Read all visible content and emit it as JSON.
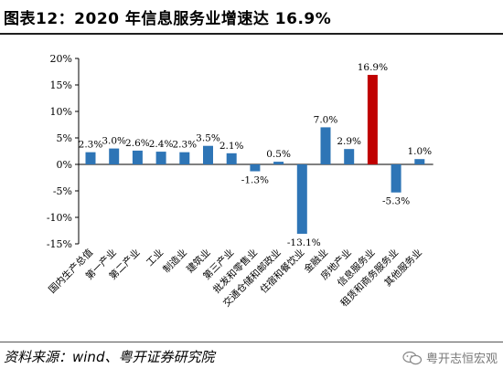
{
  "header": {
    "title": "图表12：2020 年信息服务业增速达 16.9%"
  },
  "footer": {
    "source": "资料来源：wind、粤开证券研究院",
    "watermark": "粤开志恒宏观",
    "watermark_icon": "wechat-icon"
  },
  "colors": {
    "default_bar": "#2e75b6",
    "highlight_bar": "#c00000"
  },
  "chart_data": {
    "type": "bar",
    "categories": [
      "国内生产总值",
      "第一产业",
      "第二产业",
      "工业",
      "制造业",
      "建筑业",
      "第三产业",
      "批发和零售业",
      "交通仓储和邮政业",
      "住宿和餐饮业",
      "金融业",
      "房地产业",
      "信息服务业",
      "租赁和商务服务业",
      "其他服务业"
    ],
    "values": [
      2.3,
      3.0,
      2.6,
      2.4,
      2.3,
      3.5,
      2.1,
      -1.3,
      0.5,
      -13.1,
      7.0,
      2.9,
      16.9,
      -5.3,
      1.0
    ],
    "value_labels": [
      "2.3%",
      "3.0%",
      "2.6%",
      "2.4%",
      "2.3%",
      "3.5%",
      "2.1%",
      "-1.3%",
      "0.5%",
      "-13.1%",
      "7.0%",
      "2.9%",
      "16.9%",
      "-5.3%",
      "1.0%"
    ],
    "highlight_index": 12,
    "ylim": [
      -15,
      20
    ],
    "yticks": [
      20,
      15,
      10,
      5,
      0,
      -5,
      -10,
      -15
    ],
    "ytick_labels": [
      "20%",
      "15%",
      "10%",
      "5%",
      "0%",
      "-5%",
      "-10%",
      "-15%"
    ],
    "grid": false,
    "title": "",
    "xlabel": "",
    "ylabel": ""
  }
}
